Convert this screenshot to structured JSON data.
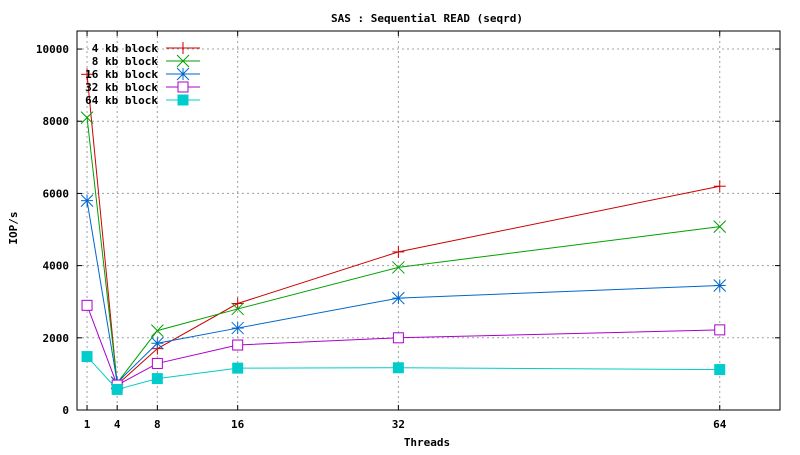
{
  "chart_data": {
    "type": "line",
    "title": "SAS : Sequential READ (seqrd)",
    "xlabel": "Threads",
    "ylabel": "IOP/s",
    "x": [
      1,
      4,
      8,
      16,
      32,
      64
    ],
    "xticks": [
      1,
      4,
      8,
      16,
      32,
      64
    ],
    "xlim": [
      0,
      70
    ],
    "ylim": [
      0,
      10500
    ],
    "yticks": [
      0,
      2000,
      4000,
      6000,
      8000,
      10000
    ],
    "grid": true,
    "legend_position": "top-left",
    "series": [
      {
        "name": "4 kb block",
        "color": "#cc0000",
        "marker": "plus",
        "values": [
          9300,
          700,
          1700,
          2950,
          4380,
          6200
        ]
      },
      {
        "name": "8 kb block",
        "color": "#00a000",
        "marker": "cross",
        "values": [
          8100,
          750,
          2200,
          2800,
          3950,
          5080
        ]
      },
      {
        "name": "16 kb block",
        "color": "#0066cc",
        "marker": "star",
        "values": [
          5800,
          760,
          1850,
          2270,
          3100,
          3450
        ]
      },
      {
        "name": "32 kb block",
        "color": "#aa00cc",
        "marker": "square-open",
        "values": [
          2900,
          690,
          1290,
          1800,
          2000,
          2220
        ]
      },
      {
        "name": "64 kb block",
        "color": "#00cccc",
        "marker": "square-filled",
        "values": [
          1480,
          570,
          870,
          1160,
          1170,
          1120
        ]
      }
    ]
  }
}
